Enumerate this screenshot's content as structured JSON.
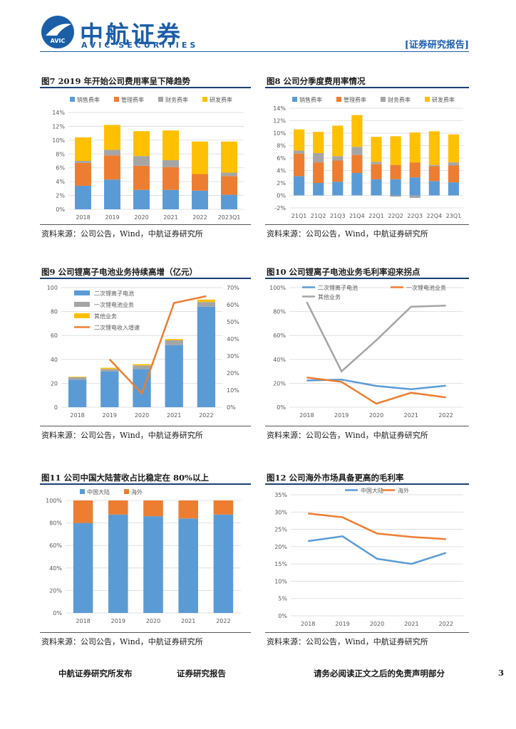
{
  "header": {
    "brand_cn": "中航证券",
    "brand_en": "AVIC SECURITIES",
    "logo_text": "AVIC",
    "report_type": "[证券研究报告]"
  },
  "footer": {
    "left": "中航证券研究所发布",
    "center": "证券研究报告",
    "right": "请务必阅读正文之后的免责声明部分",
    "page_number": "3"
  },
  "colors": {
    "blue": "#5b9bd5",
    "orange": "#ed7d31",
    "gray": "#a5a5a5",
    "gold": "#ffc000",
    "brand": "#1b5ea8"
  },
  "chart_data": [
    {
      "id": "fig7",
      "type": "bar",
      "title": "图7 2019 年开始公司费用率呈下降趋势",
      "source": "资料来源：公司公告，Wind，中航证券研究所",
      "categories": [
        "2018",
        "2019",
        "2020",
        "2021",
        "2022",
        "2023Q1"
      ],
      "series": [
        {
          "name": "销售费率",
          "color": "#5b9bd5",
          "values": [
            3.4,
            4.3,
            2.8,
            2.8,
            2.7,
            2.1
          ]
        },
        {
          "name": "管理费率",
          "color": "#ed7d31",
          "values": [
            3.3,
            3.5,
            3.5,
            3.3,
            2.4,
            2.7
          ]
        },
        {
          "name": "财务费率",
          "color": "#a5a5a5",
          "values": [
            0.3,
            0.8,
            1.4,
            1.0,
            0.0,
            0.5
          ]
        },
        {
          "name": "研发费率",
          "color": "#ffc000",
          "values": [
            3.4,
            3.6,
            3.6,
            4.3,
            4.7,
            4.5
          ]
        }
      ],
      "yticks": [
        "0%",
        "2%",
        "4%",
        "6%",
        "8%",
        "10%",
        "12%",
        "14%"
      ],
      "ylim": [
        0,
        14
      ]
    },
    {
      "id": "fig8",
      "type": "bar",
      "title": "图8 公司分季度费用率情况",
      "source": "资料来源：公司公告，Wind，中航证券研究所",
      "categories": [
        "21Q1",
        "21Q2",
        "21Q3",
        "21Q4",
        "22Q1",
        "22Q2",
        "22Q3",
        "22Q4",
        "23Q1"
      ],
      "series": [
        {
          "name": "销售费率",
          "color": "#5b9bd5",
          "values": [
            3.1,
            2.0,
            2.2,
            3.6,
            2.6,
            2.6,
            2.9,
            2.3,
            2.1
          ]
        },
        {
          "name": "管理费率",
          "color": "#ed7d31",
          "values": [
            3.6,
            3.3,
            3.4,
            2.9,
            2.4,
            2.3,
            2.4,
            2.4,
            2.7
          ]
        },
        {
          "name": "财务费率",
          "color": "#a5a5a5",
          "values": [
            0.5,
            1.5,
            0.7,
            1.3,
            0.4,
            -0.2,
            -0.4,
            0.2,
            0.5
          ]
        },
        {
          "name": "研发费率",
          "color": "#ffc000",
          "values": [
            3.4,
            3.4,
            4.9,
            5.1,
            4.0,
            4.6,
            4.8,
            5.4,
            4.5
          ]
        }
      ],
      "yticks": [
        "-2%",
        "0%",
        "2%",
        "4%",
        "6%",
        "8%",
        "10%",
        "12%",
        "14%"
      ],
      "ylim": [
        -2,
        14
      ]
    },
    {
      "id": "fig9",
      "type": "bar",
      "title": "图9 公司锂离子电池业务持续高增（亿元）",
      "source": "资料来源：公司公告，Wind，中航证券研究所",
      "categories": [
        "2018",
        "2019",
        "2020",
        "2021",
        "2022"
      ],
      "series": [
        {
          "name": "二次锂离子电池",
          "color": "#5b9bd5",
          "values": [
            23,
            30,
            32,
            52,
            84
          ]
        },
        {
          "name": "一次锂电池业务",
          "color": "#a5a5a5",
          "values": [
            2,
            2,
            3,
            4,
            4
          ]
        },
        {
          "name": "其他业务",
          "color": "#ffc000",
          "values": [
            0.5,
            1,
            1,
            1,
            2
          ]
        }
      ],
      "line": {
        "name": "二次锂电收入增速",
        "color": "#ed7d31",
        "axis": "right",
        "values": [
          null,
          28,
          8,
          61,
          65
        ]
      },
      "yticks": [
        "0",
        "20",
        "40",
        "60",
        "80",
        "100"
      ],
      "ylim": [
        0,
        100
      ],
      "y2ticks": [
        "0%",
        "10%",
        "20%",
        "30%",
        "40%",
        "50%",
        "60%",
        "70%"
      ],
      "y2lim": [
        0,
        70
      ]
    },
    {
      "id": "fig10",
      "type": "line",
      "title": "图10 公司锂离子电池业务毛利率迎来拐点",
      "source": "资料来源：公司公告，Wind，中航证券研究所",
      "categories": [
        "2018",
        "2019",
        "2020",
        "2021",
        "2022"
      ],
      "series": [
        {
          "name": "二次锂离子电池",
          "color": "#5b9bd5",
          "values": [
            22.3,
            23.1,
            17.8,
            15.0,
            18.0
          ]
        },
        {
          "name": "一次锂电池业务",
          "color": "#ed7d31",
          "values": [
            24.8,
            21.2,
            3.0,
            12.1,
            8.3
          ]
        },
        {
          "name": "其他业务",
          "color": "#a5a5a5",
          "values": [
            88,
            30,
            56,
            84,
            85
          ]
        }
      ],
      "yticks": [
        "0%",
        "20%",
        "40%",
        "60%",
        "80%",
        "100%"
      ],
      "ylim": [
        0,
        100
      ]
    },
    {
      "id": "fig11",
      "type": "bar",
      "title": "图11 公司中国大陆营收占比稳定在 80%以上",
      "source": "资料来源：公司公告，Wind，中航证券研究所",
      "categories": [
        "2018",
        "2019",
        "2020",
        "2021",
        "2022"
      ],
      "series": [
        {
          "name": "中国大陆",
          "color": "#5b9bd5",
          "values": [
            80,
            87.5,
            86,
            84,
            87.5
          ]
        },
        {
          "name": "海外",
          "color": "#ed7d31",
          "values": [
            20,
            12.5,
            14,
            16,
            12.5
          ]
        }
      ],
      "yticks": [
        "0%",
        "20%",
        "40%",
        "60%",
        "80%",
        "100%"
      ],
      "ylim": [
        0,
        100
      ]
    },
    {
      "id": "fig12",
      "type": "line",
      "title": "图12 公司海外市场具备更高的毛利率",
      "source": "资料来源：公司公告，Wind，中航证券研究所",
      "categories": [
        "2018",
        "2019",
        "2020",
        "2021",
        "2022"
      ],
      "series": [
        {
          "name": "中国大陆",
          "color": "#5b9bd5",
          "values": [
            21.6,
            23.0,
            16.5,
            15.0,
            18.2
          ]
        },
        {
          "name": "海外",
          "color": "#ed7d31",
          "values": [
            29.6,
            28.5,
            23.8,
            22.8,
            22.2
          ]
        }
      ],
      "yticks": [
        "0%",
        "5%",
        "10%",
        "15%",
        "20%",
        "25%",
        "30%",
        "35%"
      ],
      "ylim": [
        0,
        35
      ]
    }
  ]
}
